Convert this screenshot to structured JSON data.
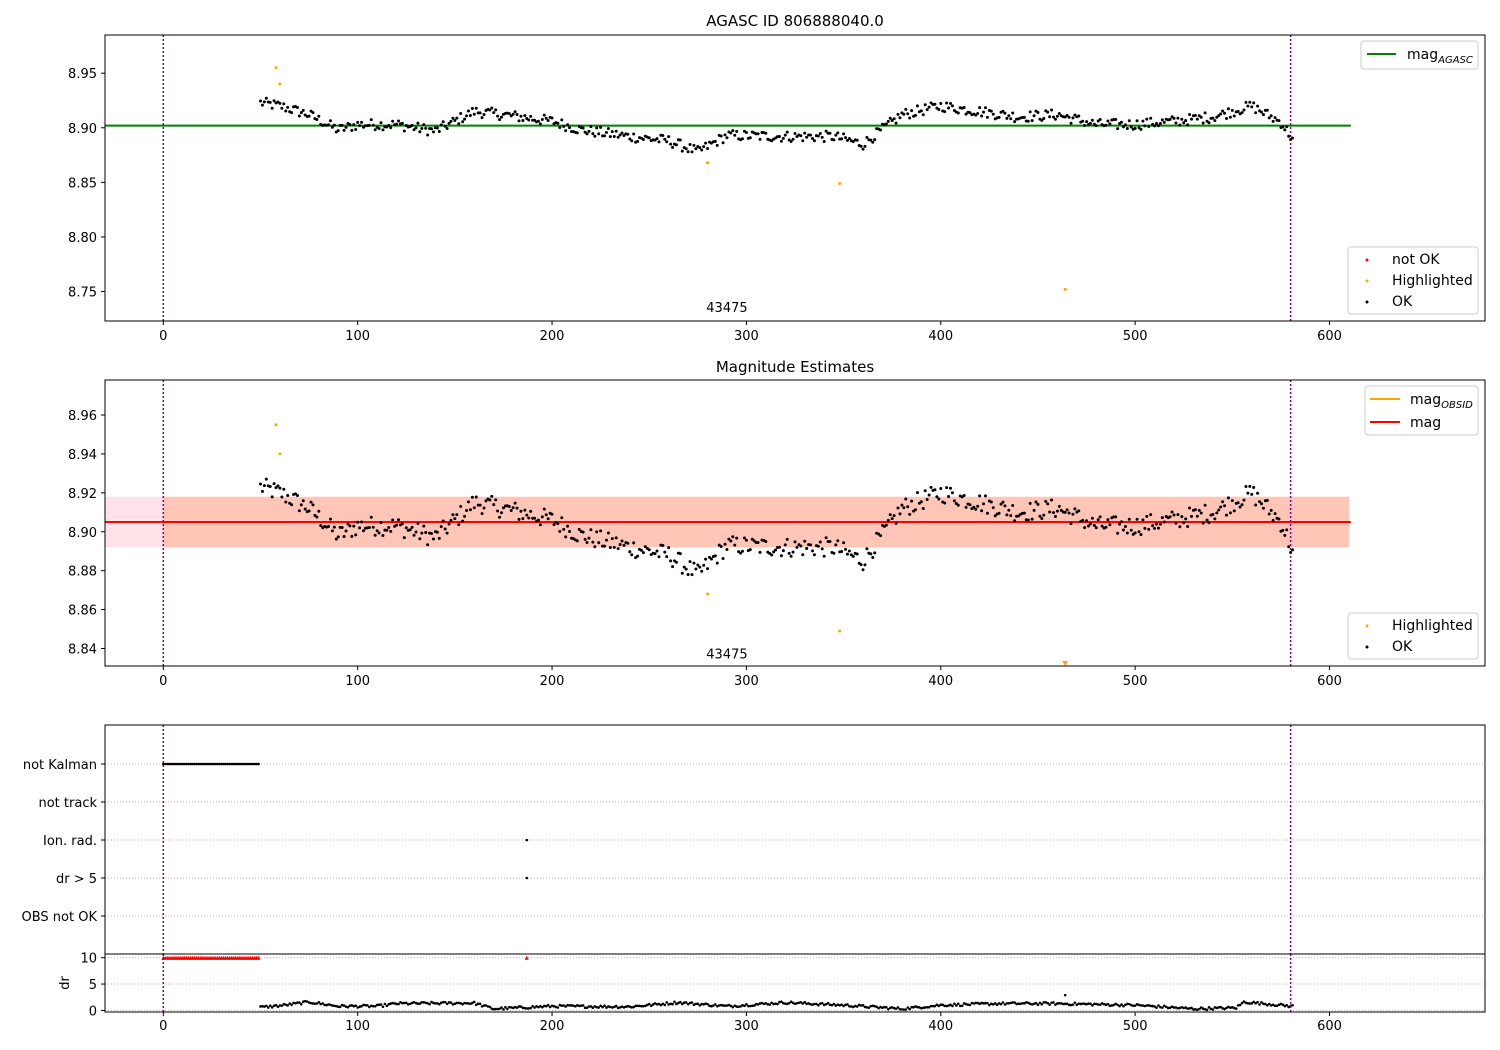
{
  "chart_data": [
    {
      "type": "scatter",
      "title": "AGASC ID 806888040.0",
      "xlim": [
        -30,
        680
      ],
      "ylim": [
        8.723,
        8.985
      ],
      "xticks": [
        0,
        100,
        200,
        300,
        400,
        500,
        600
      ],
      "yticks": [
        8.75,
        8.8,
        8.85,
        8.9,
        8.95
      ],
      "ytick_labels": [
        "8.75",
        "8.80",
        "8.85",
        "8.90",
        "8.95"
      ],
      "vlines": [
        0,
        580
      ],
      "hline": {
        "value": 8.902,
        "color": "#008000"
      },
      "annotation": {
        "text": "43475",
        "x": 290,
        "y": 8.735
      },
      "legend_lines": {
        "placement": "upper right",
        "entries": [
          {
            "label": "mag",
            "sub": "AGASC",
            "color": "#008000"
          }
        ]
      },
      "legend_points": {
        "placement": "lower right",
        "entries": [
          {
            "label": "not OK",
            "color": "#ff0000"
          },
          {
            "label": "Highlighted",
            "color": "#ffa500"
          },
          {
            "label": "OK",
            "color": "#000000"
          }
        ]
      },
      "series": [
        {
          "name": "OK",
          "color": "#000000",
          "x_start": 50,
          "x_end": 581,
          "segments": [
            [
              50,
              8.923
            ],
            [
              60,
              8.92
            ],
            [
              75,
              8.912
            ],
            [
              90,
              8.898
            ],
            [
              100,
              8.903
            ],
            [
              120,
              8.903
            ],
            [
              140,
              8.897
            ],
            [
              160,
              8.915
            ],
            [
              175,
              8.912
            ],
            [
              200,
              8.906
            ],
            [
              215,
              8.898
            ],
            [
              240,
              8.892
            ],
            [
              260,
              8.888
            ],
            [
              275,
              8.878
            ],
            [
              290,
              8.893
            ],
            [
              320,
              8.892
            ],
            [
              345,
              8.892
            ],
            [
              360,
              8.885
            ],
            [
              380,
              8.912
            ],
            [
              400,
              8.92
            ],
            [
              420,
              8.915
            ],
            [
              440,
              8.91
            ],
            [
              460,
              8.912
            ],
            [
              480,
              8.903
            ],
            [
              500,
              8.903
            ],
            [
              520,
              8.906
            ],
            [
              540,
              8.91
            ],
            [
              560,
              8.92
            ],
            [
              575,
              8.905
            ],
            [
              581,
              8.89
            ]
          ],
          "noise": 0.005
        },
        {
          "name": "Highlighted",
          "color": "#ffa500",
          "points": [
            [
              58,
              8.955
            ],
            [
              60,
              8.94
            ],
            [
              280,
              8.868
            ],
            [
              348,
              8.849
            ],
            [
              464,
              8.752
            ]
          ]
        }
      ]
    },
    {
      "type": "scatter",
      "title": "Magnitude Estimates",
      "xlim": [
        -30,
        680
      ],
      "ylim": [
        8.831,
        8.978
      ],
      "xticks": [
        0,
        100,
        200,
        300,
        400,
        500,
        600
      ],
      "yticks": [
        8.84,
        8.86,
        8.88,
        8.9,
        8.92,
        8.94,
        8.96
      ],
      "ytick_labels": [
        "8.84",
        "8.86",
        "8.88",
        "8.90",
        "8.92",
        "8.94",
        "8.96"
      ],
      "vlines": [
        0,
        580
      ],
      "mag_line": {
        "value": 8.905,
        "color": "#ff0000"
      },
      "band_pink": {
        "range": [
          8.892,
          8.918
        ],
        "x_range": [
          -30,
          610
        ],
        "color": "#ffc0cb"
      },
      "band_orange": {
        "range": [
          8.892,
          8.918
        ],
        "x_range": [
          0,
          610
        ],
        "color": "#ffa07a"
      },
      "annotation": {
        "text": "43475",
        "x": 290,
        "y": 8.837
      },
      "legend_lines": {
        "placement": "upper right",
        "entries": [
          {
            "label": "mag",
            "sub": "OBSID",
            "color": "#ffa500"
          },
          {
            "label": "mag",
            "sub": "",
            "color": "#ff0000"
          }
        ]
      },
      "legend_points": {
        "placement": "lower right",
        "entries": [
          {
            "label": "Highlighted",
            "color": "#ffa500"
          },
          {
            "label": "OK",
            "color": "#000000"
          }
        ]
      },
      "series": [
        {
          "name": "OK",
          "color": "#000000",
          "x_start": 50,
          "x_end": 581,
          "segments": [
            [
              50,
              8.923
            ],
            [
              60,
              8.92
            ],
            [
              75,
              8.912
            ],
            [
              90,
              8.898
            ],
            [
              100,
              8.903
            ],
            [
              120,
              8.903
            ],
            [
              140,
              8.897
            ],
            [
              160,
              8.915
            ],
            [
              175,
              8.912
            ],
            [
              200,
              8.906
            ],
            [
              215,
              8.898
            ],
            [
              240,
              8.892
            ],
            [
              260,
              8.888
            ],
            [
              275,
              8.878
            ],
            [
              290,
              8.893
            ],
            [
              320,
              8.892
            ],
            [
              345,
              8.892
            ],
            [
              360,
              8.885
            ],
            [
              380,
              8.912
            ],
            [
              400,
              8.92
            ],
            [
              420,
              8.915
            ],
            [
              440,
              8.91
            ],
            [
              460,
              8.912
            ],
            [
              480,
              8.903
            ],
            [
              500,
              8.903
            ],
            [
              520,
              8.906
            ],
            [
              540,
              8.91
            ],
            [
              560,
              8.92
            ],
            [
              575,
              8.905
            ],
            [
              581,
              8.89
            ]
          ],
          "noise": 0.005
        },
        {
          "name": "Highlighted",
          "color": "#ffa500",
          "points": [
            [
              58,
              8.955
            ],
            [
              60,
              8.94
            ],
            [
              280,
              8.868
            ],
            [
              348,
              8.849
            ]
          ]
        },
        {
          "name": "Highlighted-off-scale",
          "color": "#ffa500",
          "marker": "triangle-down",
          "points": [
            [
              464,
              8.832
            ]
          ]
        }
      ]
    },
    {
      "type": "scatter",
      "title": "",
      "xlim": [
        -30,
        680
      ],
      "xticks": [
        0,
        100,
        200,
        300,
        400,
        500,
        600
      ],
      "vlines": [
        0,
        580
      ],
      "categories": [
        "not Kalman",
        "not track",
        "Ion. rad.",
        "dr > 5",
        "OBS not OK"
      ],
      "flags": [
        {
          "category": "not Kalman",
          "x_range": [
            0,
            49
          ]
        },
        {
          "category": "Ion. rad.",
          "points": [
            187
          ]
        },
        {
          "category": "dr > 5",
          "points": [
            187
          ]
        }
      ]
    },
    {
      "type": "scatter",
      "title": "",
      "ylabel": "dr",
      "xlim": [
        -30,
        680
      ],
      "ylim": [
        -0.3,
        10.7
      ],
      "xticks": [
        0,
        100,
        200,
        300,
        400,
        500,
        600
      ],
      "yticks": [
        0,
        5,
        10
      ],
      "ytick_labels": [
        "0",
        "5",
        "10"
      ],
      "vlines": [
        0,
        580
      ],
      "series": [
        {
          "name": "dr-clipped",
          "color": "#ff0000",
          "marker": "triangle-up",
          "value": 10,
          "x_range": [
            0,
            49
          ],
          "extra_points": [
            187
          ]
        },
        {
          "name": "dr",
          "color": "#000000",
          "x_start": 50,
          "x_end": 581,
          "segments": [
            [
              50,
              0.6
            ],
            [
              60,
              0.9
            ],
            [
              75,
              1.6
            ],
            [
              90,
              0.8
            ],
            [
              110,
              0.8
            ],
            [
              120,
              1.3
            ],
            [
              160,
              1.4
            ],
            [
              170,
              0.3
            ],
            [
              200,
              0.8
            ],
            [
              240,
              0.7
            ],
            [
              265,
              1.5
            ],
            [
              290,
              0.8
            ],
            [
              320,
              1.5
            ],
            [
              350,
              1.0
            ],
            [
              380,
              0.3
            ],
            [
              400,
              1.0
            ],
            [
              430,
              1.3
            ],
            [
              460,
              1.3
            ],
            [
              500,
              1.0
            ],
            [
              530,
              0.3
            ],
            [
              552,
              0.5
            ],
            [
              556,
              1.6
            ],
            [
              575,
              1.0
            ],
            [
              581,
              0.8
            ]
          ],
          "noise": 0.25
        },
        {
          "name": "dr-outlier",
          "color": "#000000",
          "points": [
            [
              464,
              2.9
            ]
          ]
        }
      ],
      "xtick_labels": [
        "0",
        "100",
        "200",
        "300",
        "400",
        "500",
        "600"
      ]
    }
  ]
}
